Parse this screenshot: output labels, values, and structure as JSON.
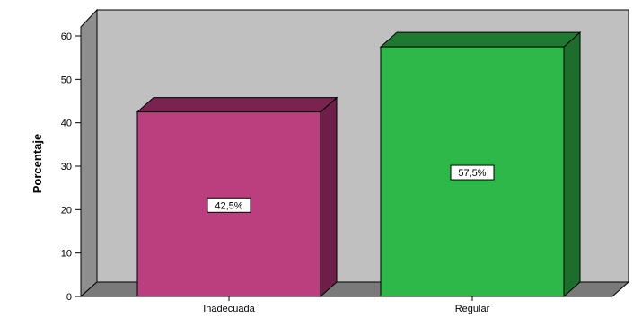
{
  "chart_data": {
    "type": "bar",
    "categories": [
      "Inadecuada",
      "Regular"
    ],
    "values": [
      42.5,
      57.5
    ],
    "data_labels": [
      "42,5%",
      "57,5%"
    ],
    "ylabel": "Porcentaje",
    "ylim": [
      0,
      60
    ],
    "yticks": [
      "0",
      "10",
      "20",
      "30",
      "40",
      "50",
      "60"
    ],
    "grid": false,
    "style": "3d",
    "colors": {
      "bars": [
        "#bb3f7f",
        "#2fb84a"
      ],
      "bar_tops": [
        "#7a2250",
        "#1f7a31"
      ],
      "bar_sides": [
        "#6e1f48",
        "#1d6e2d"
      ],
      "plot_background": "#c0c0c0",
      "left_wall": "#8e8e8e",
      "floor": "#7a7a7a"
    }
  }
}
